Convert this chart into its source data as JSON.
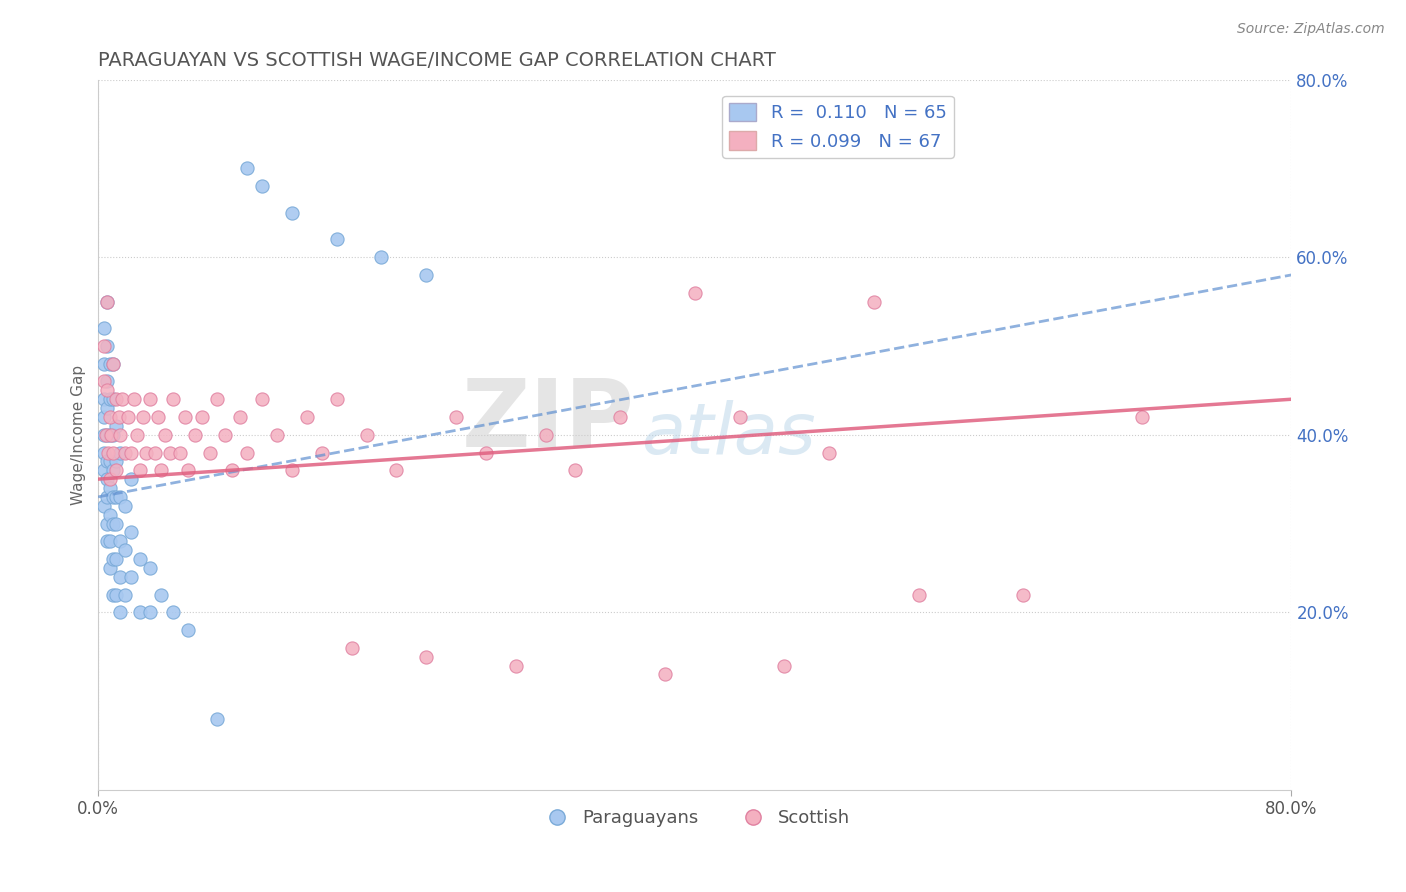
{
  "title": "PARAGUAYAN VS SCOTTISH WAGE/INCOME GAP CORRELATION CHART",
  "source_text": "Source: ZipAtlas.com",
  "ylabel": "Wage/Income Gap",
  "xlim": [
    0.0,
    0.8
  ],
  "ylim": [
    0.0,
    0.8
  ],
  "blue_color": "#a8c8f0",
  "blue_edge": "#7aaad8",
  "pink_color": "#f4b0c0",
  "pink_edge": "#e080a0",
  "blue_R": 0.11,
  "blue_N": 65,
  "pink_R": 0.099,
  "pink_N": 67,
  "blue_trend_color": "#6090d0",
  "pink_trend_color": "#e06080",
  "watermark_zip": "ZIP",
  "watermark_atlas": "atlas",
  "background_color": "#ffffff",
  "grid_color": "#cccccc",
  "paraguayan_x": [
    0.004,
    0.004,
    0.004,
    0.004,
    0.004,
    0.004,
    0.004,
    0.004,
    0.006,
    0.006,
    0.006,
    0.006,
    0.006,
    0.006,
    0.006,
    0.006,
    0.006,
    0.006,
    0.008,
    0.008,
    0.008,
    0.008,
    0.008,
    0.008,
    0.008,
    0.008,
    0.01,
    0.01,
    0.01,
    0.01,
    0.01,
    0.01,
    0.01,
    0.01,
    0.012,
    0.012,
    0.012,
    0.012,
    0.012,
    0.012,
    0.015,
    0.015,
    0.015,
    0.015,
    0.015,
    0.018,
    0.018,
    0.018,
    0.022,
    0.022,
    0.022,
    0.028,
    0.028,
    0.035,
    0.035,
    0.042,
    0.05,
    0.06,
    0.08,
    0.1,
    0.11,
    0.13,
    0.16,
    0.19,
    0.22
  ],
  "paraguayan_y": [
    0.32,
    0.36,
    0.38,
    0.4,
    0.42,
    0.44,
    0.48,
    0.52,
    0.28,
    0.3,
    0.33,
    0.35,
    0.37,
    0.4,
    0.43,
    0.46,
    0.5,
    0.55,
    0.25,
    0.28,
    0.31,
    0.34,
    0.37,
    0.4,
    0.44,
    0.48,
    0.22,
    0.26,
    0.3,
    0.33,
    0.36,
    0.4,
    0.44,
    0.48,
    0.22,
    0.26,
    0.3,
    0.33,
    0.37,
    0.41,
    0.2,
    0.24,
    0.28,
    0.33,
    0.38,
    0.22,
    0.27,
    0.32,
    0.24,
    0.29,
    0.35,
    0.2,
    0.26,
    0.2,
    0.25,
    0.22,
    0.2,
    0.18,
    0.08,
    0.7,
    0.68,
    0.65,
    0.62,
    0.6,
    0.58
  ],
  "scottish_x": [
    0.004,
    0.004,
    0.005,
    0.006,
    0.006,
    0.007,
    0.008,
    0.008,
    0.009,
    0.01,
    0.01,
    0.012,
    0.012,
    0.014,
    0.015,
    0.016,
    0.018,
    0.02,
    0.022,
    0.024,
    0.026,
    0.028,
    0.03,
    0.032,
    0.035,
    0.038,
    0.04,
    0.042,
    0.045,
    0.048,
    0.05,
    0.055,
    0.058,
    0.06,
    0.065,
    0.07,
    0.075,
    0.08,
    0.085,
    0.09,
    0.095,
    0.1,
    0.11,
    0.12,
    0.13,
    0.14,
    0.15,
    0.16,
    0.17,
    0.18,
    0.2,
    0.22,
    0.24,
    0.26,
    0.28,
    0.3,
    0.32,
    0.35,
    0.38,
    0.4,
    0.43,
    0.46,
    0.49,
    0.52,
    0.55,
    0.62,
    0.7
  ],
  "scottish_y": [
    0.5,
    0.46,
    0.4,
    0.55,
    0.45,
    0.38,
    0.42,
    0.35,
    0.4,
    0.48,
    0.38,
    0.44,
    0.36,
    0.42,
    0.4,
    0.44,
    0.38,
    0.42,
    0.38,
    0.44,
    0.4,
    0.36,
    0.42,
    0.38,
    0.44,
    0.38,
    0.42,
    0.36,
    0.4,
    0.38,
    0.44,
    0.38,
    0.42,
    0.36,
    0.4,
    0.42,
    0.38,
    0.44,
    0.4,
    0.36,
    0.42,
    0.38,
    0.44,
    0.4,
    0.36,
    0.42,
    0.38,
    0.44,
    0.16,
    0.4,
    0.36,
    0.15,
    0.42,
    0.38,
    0.14,
    0.4,
    0.36,
    0.42,
    0.13,
    0.56,
    0.42,
    0.14,
    0.38,
    0.55,
    0.22,
    0.22,
    0.42
  ],
  "legend_R_color": "#4472c4",
  "legend_N_color": "#c00000"
}
